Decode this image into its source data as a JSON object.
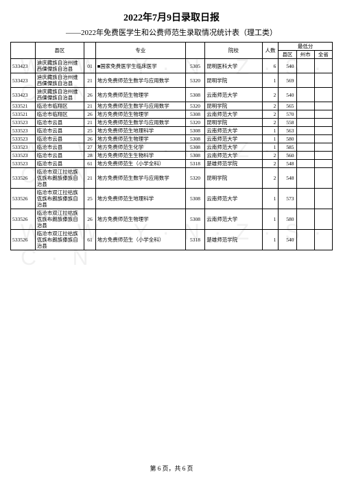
{
  "title": "2022年7月9日录取日报",
  "subtitle": "——2022年免费医学生和公费师范生录取情况统计表（理工类）",
  "footer": "第 6 页，共 6 页",
  "watermark_text": "W · W · Y · N · Z · S · C · N",
  "headers": {
    "code": "",
    "county": "县区",
    "majcode": "",
    "major": "专业",
    "schcode": "",
    "school": "院校",
    "count": "人数",
    "score_group": "最低分",
    "score_county": "县区",
    "score_city": "州市",
    "score_prov": "全省"
  },
  "rows": [
    {
      "code": "533423",
      "county": "迪庆藏族自治州维西傈僳族自治县",
      "majcode": "01",
      "major": "■国家免费医学生临床医学",
      "schcode": "5305",
      "school": "昆明医科大学",
      "count": "6",
      "s1": "540",
      "s2": "",
      "s3": ""
    },
    {
      "code": "533423",
      "county": "迪庆藏族自治州维西傈僳族自治县",
      "majcode": "21",
      "major": "地方免费师范生数学与应用数学",
      "schcode": "5320",
      "school": "昆明学院",
      "count": "1",
      "s1": "569",
      "s2": "",
      "s3": ""
    },
    {
      "code": "533423",
      "county": "迪庆藏族自治州维西傈僳族自治县",
      "majcode": "26",
      "major": "地方免费师范生物理学",
      "schcode": "5308",
      "school": "云南师范大学",
      "count": "2",
      "s1": "540",
      "s2": "",
      "s3": ""
    },
    {
      "code": "533521",
      "county": "临沧市临翔区",
      "majcode": "21",
      "major": "地方免费师范生数学与应用数学",
      "schcode": "5320",
      "school": "昆明学院",
      "count": "2",
      "s1": "565",
      "s2": "",
      "s3": ""
    },
    {
      "code": "533521",
      "county": "临沧市临翔区",
      "majcode": "26",
      "major": "地方免费师范生物理学",
      "schcode": "5308",
      "school": "云南师范大学",
      "count": "2",
      "s1": "570",
      "s2": "",
      "s3": ""
    },
    {
      "code": "533523",
      "county": "临沧市云县",
      "majcode": "21",
      "major": "地方免费师范生数学与应用数学",
      "schcode": "5320",
      "school": "昆明学院",
      "count": "2",
      "s1": "558",
      "s2": "",
      "s3": ""
    },
    {
      "code": "533523",
      "county": "临沧市云县",
      "majcode": "25",
      "major": "地方免费师范生地理科学",
      "schcode": "5308",
      "school": "云南师范大学",
      "count": "1",
      "s1": "563",
      "s2": "",
      "s3": ""
    },
    {
      "code": "533523",
      "county": "临沧市云县",
      "majcode": "26",
      "major": "地方免费师范生物理学",
      "schcode": "5308",
      "school": "云南师范大学",
      "count": "1",
      "s1": "580",
      "s2": "",
      "s3": ""
    },
    {
      "code": "533523",
      "county": "临沧市云县",
      "majcode": "27",
      "major": "地方免费师范生化学",
      "schcode": "5308",
      "school": "云南师范大学",
      "count": "1",
      "s1": "585",
      "s2": "",
      "s3": ""
    },
    {
      "code": "533523",
      "county": "临沧市云县",
      "majcode": "28",
      "major": "地方免费师范生生物科学",
      "schcode": "5308",
      "school": "云南师范大学",
      "count": "2",
      "s1": "560",
      "s2": "",
      "s3": ""
    },
    {
      "code": "533523",
      "county": "临沧市云县",
      "majcode": "61",
      "major": "地方免费师范生（小学全科）",
      "schcode": "5318",
      "school": "楚雄师范学院",
      "count": "2",
      "s1": "548",
      "s2": "",
      "s3": ""
    },
    {
      "code": "533526",
      "county": "临沧市双江拉祜族佤族布朗族傣族自治县",
      "majcode": "21",
      "major": "地方免费师范生数学与应用数学",
      "schcode": "5320",
      "school": "昆明学院",
      "count": "2",
      "s1": "548",
      "s2": "",
      "s3": ""
    },
    {
      "code": "533526",
      "county": "临沧市双江拉祜族佤族布朗族傣族自治县",
      "majcode": "25",
      "major": "地方免费师范生地理科学",
      "schcode": "5308",
      "school": "云南师范大学",
      "count": "1",
      "s1": "573",
      "s2": "",
      "s3": ""
    },
    {
      "code": "533526",
      "county": "临沧市双江拉祜族佤族布朗族傣族自治县",
      "majcode": "26",
      "major": "地方免费师范生物理学",
      "schcode": "5308",
      "school": "云南师范大学",
      "count": "1",
      "s1": "580",
      "s2": "",
      "s3": ""
    },
    {
      "code": "533526",
      "county": "临沧市双江拉祜族佤族布朗族傣族自治县",
      "majcode": "61",
      "major": "地方免费师范生（小学全科）",
      "schcode": "5318",
      "school": "楚雄师范学院",
      "count": "1",
      "s1": "540",
      "s2": "",
      "s3": ""
    }
  ]
}
